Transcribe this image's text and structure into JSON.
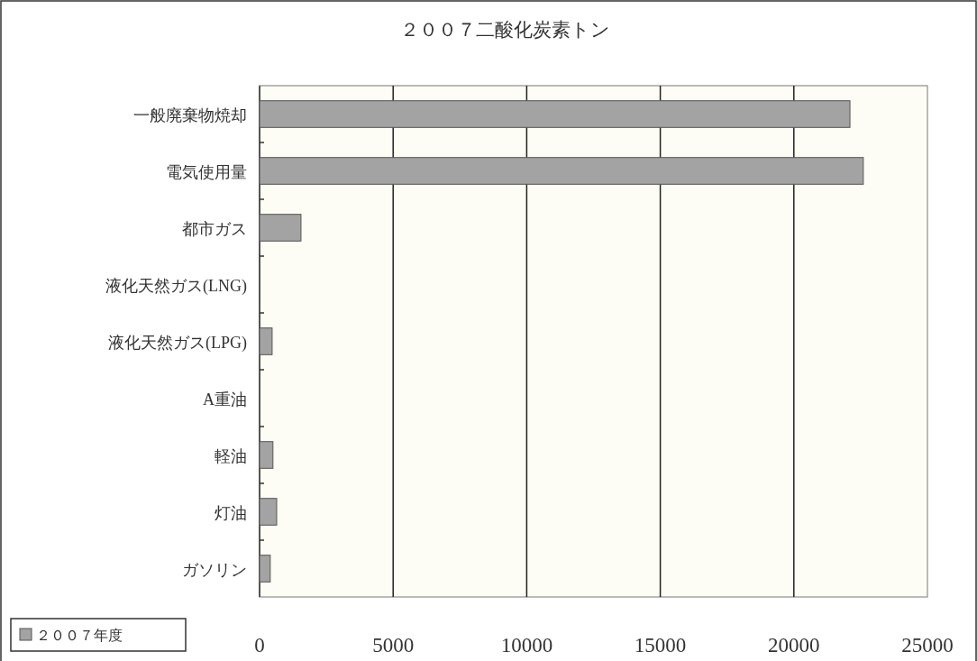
{
  "chart_data": {
    "type": "bar",
    "orientation": "horizontal",
    "title": "２００７二酸化炭素トン",
    "categories": [
      "一般廃棄物焼却",
      "電気使用量",
      "都市ガス",
      "液化天然ガス(LNG)",
      "液化天然ガス(LPG)",
      "A重油",
      "軽油",
      "灯油",
      "ガソリン"
    ],
    "series": [
      {
        "name": "２００７年度",
        "color": "#a3a3a3",
        "values": [
          22100,
          22600,
          1550,
          0,
          470,
          0,
          500,
          640,
          400
        ]
      }
    ],
    "xlim": [
      0,
      25000
    ],
    "xticks": [
      0,
      5000,
      10000,
      15000,
      20000,
      25000
    ],
    "grid": "x",
    "legend": "bottom left"
  }
}
